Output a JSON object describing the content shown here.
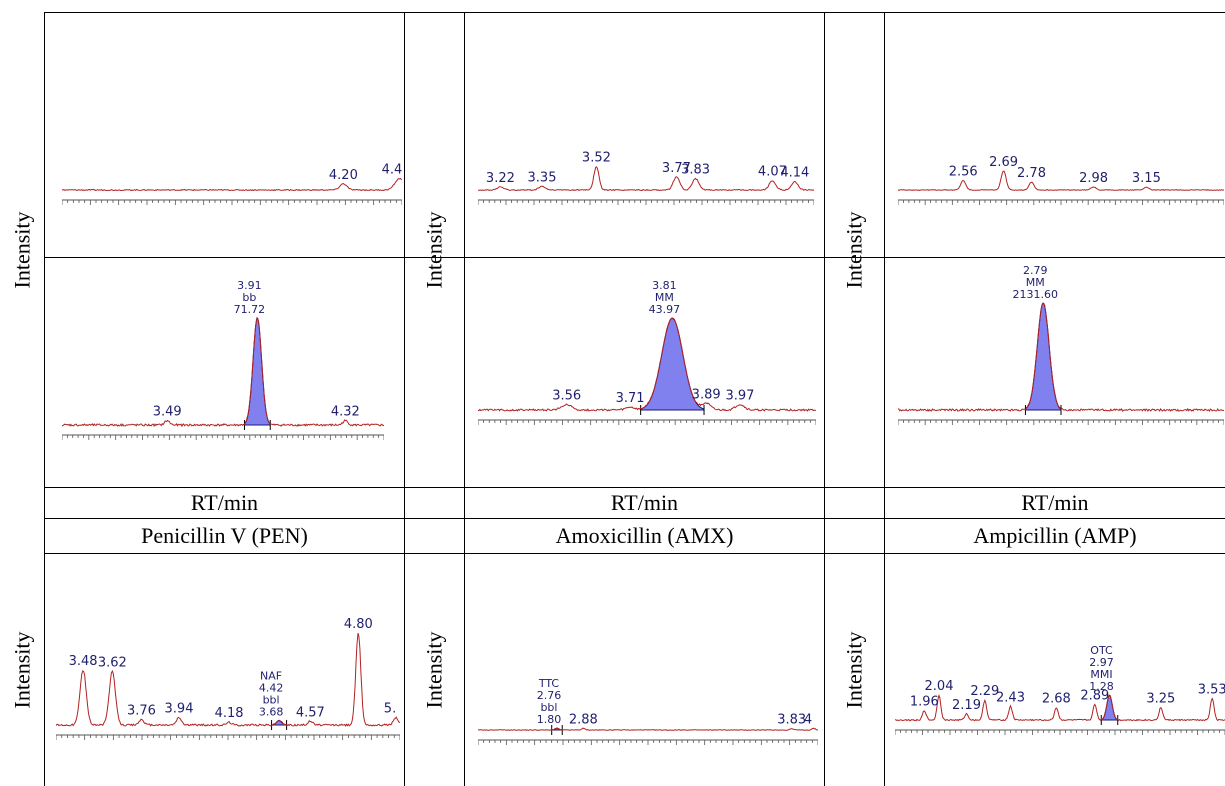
{
  "colors": {
    "trace": "#b22222",
    "peak_fill": "#8080ee",
    "peak_stroke": "#1a1a7a",
    "label": "#1f1f6e",
    "axis": "#555555"
  },
  "labels": {
    "y_axis": "Intensity",
    "x_axis": "RT/min",
    "compounds": [
      "Penicillin  V (PEN)",
      "Amoxicillin  (AMX)",
      "Ampicillin  (AMP)"
    ]
  },
  "chart_data": [
    {
      "type": "line",
      "id": "pen-blank",
      "xlim": [
        3.0,
        4.45
      ],
      "peaks": [
        {
          "rt": 4.2,
          "h": 0.12,
          "w": 0.015,
          "label": "4.20"
        },
        {
          "rt": 4.44,
          "h": 0.22,
          "w": 0.02,
          "label": "4.4"
        }
      ]
    },
    {
      "type": "line",
      "id": "pen-sample",
      "xlim": [
        3.0,
        4.5
      ],
      "peaks": [
        {
          "rt": 3.49,
          "h": 0.04,
          "w": 0.012,
          "label": "3.49"
        },
        {
          "rt": 3.91,
          "h": 1.0,
          "w": 0.02,
          "label": "71.72",
          "shaded": true,
          "name": "PEN",
          "rt_label": "3.91",
          "code": "bb"
        },
        {
          "rt": 4.32,
          "h": 0.04,
          "w": 0.012,
          "label": "4.32"
        }
      ]
    },
    {
      "type": "line",
      "id": "amx-blank",
      "xlim": [
        3.15,
        4.2
      ],
      "peaks": [
        {
          "rt": 3.22,
          "h": 0.06,
          "w": 0.01,
          "label": "3.22"
        },
        {
          "rt": 3.35,
          "h": 0.07,
          "w": 0.01,
          "label": "3.35"
        },
        {
          "rt": 3.52,
          "h": 0.45,
          "w": 0.008,
          "label": "3.52"
        },
        {
          "rt": 3.77,
          "h": 0.25,
          "w": 0.01,
          "label": "3.77"
        },
        {
          "rt": 3.83,
          "h": 0.22,
          "w": 0.01,
          "label": "3.83"
        },
        {
          "rt": 4.07,
          "h": 0.18,
          "w": 0.01,
          "label": "4.07"
        },
        {
          "rt": 4.14,
          "h": 0.16,
          "w": 0.01,
          "label": "4.14"
        }
      ]
    },
    {
      "type": "line",
      "id": "amx-sample",
      "xlim": [
        3.35,
        4.15
      ],
      "peaks": [
        {
          "rt": 3.56,
          "h": 0.06,
          "w": 0.012,
          "label": "3.56"
        },
        {
          "rt": 3.71,
          "h": 0.03,
          "w": 0.01,
          "label": "3.71"
        },
        {
          "rt": 3.81,
          "h": 1.0,
          "w": 0.025,
          "label": "43.97",
          "shaded": true,
          "name": "AMX",
          "rt_label": "3.81",
          "code": "MM"
        },
        {
          "rt": 3.89,
          "h": 0.07,
          "w": 0.01,
          "label": "3.89"
        },
        {
          "rt": 3.97,
          "h": 0.06,
          "w": 0.01,
          "label": "3.97"
        }
      ]
    },
    {
      "type": "line",
      "id": "amp-blank",
      "xlim": [
        2.35,
        3.4
      ],
      "peaks": [
        {
          "rt": 2.56,
          "h": 0.3,
          "w": 0.008,
          "label": "2.56"
        },
        {
          "rt": 2.69,
          "h": 0.6,
          "w": 0.008,
          "label": "2.69"
        },
        {
          "rt": 2.78,
          "h": 0.25,
          "w": 0.008,
          "label": "2.78"
        },
        {
          "rt": 2.98,
          "h": 0.1,
          "w": 0.008,
          "label": "2.98"
        },
        {
          "rt": 3.15,
          "h": 0.09,
          "w": 0.008,
          "label": "3.15"
        }
      ]
    },
    {
      "type": "line",
      "id": "amp-sample",
      "xlim": [
        2.3,
        3.4
      ],
      "peaks": [
        {
          "rt": 2.79,
          "h": 1.0,
          "w": 0.02,
          "label": "2131.60",
          "shaded": true,
          "name": "AMP",
          "rt_label": "2.79",
          "code": "MM"
        }
      ]
    },
    {
      "type": "line",
      "id": "naf-sample",
      "xlim": [
        3.35,
        5.0
      ],
      "peaks": [
        {
          "rt": 3.48,
          "h": 0.6,
          "w": 0.015,
          "label": "3.48"
        },
        {
          "rt": 3.62,
          "h": 0.58,
          "w": 0.015,
          "label": "3.62"
        },
        {
          "rt": 3.76,
          "h": 0.06,
          "w": 0.012,
          "label": "3.76"
        },
        {
          "rt": 3.94,
          "h": 0.08,
          "w": 0.012,
          "label": "3.94"
        },
        {
          "rt": 4.18,
          "h": 0.03,
          "w": 0.012,
          "label": "4.18"
        },
        {
          "rt": 4.42,
          "h": 0.05,
          "w": 0.012,
          "label": "3.68",
          "shaded": true,
          "name": "NAF",
          "rt_label": "4.42",
          "code": "bbl"
        },
        {
          "rt": 4.57,
          "h": 0.04,
          "w": 0.012,
          "label": "4.57"
        },
        {
          "rt": 4.8,
          "h": 1.0,
          "w": 0.012,
          "label": "4.80"
        },
        {
          "rt": 4.98,
          "h": 0.08,
          "w": 0.012,
          "label": "5."
        }
      ]
    },
    {
      "type": "line",
      "id": "ttc-sample",
      "xlim": [
        2.4,
        3.95
      ],
      "peaks": [
        {
          "rt": 2.76,
          "h": 0.06,
          "w": 0.008,
          "label": "1.80",
          "shaded": true,
          "name": "TTC",
          "rt_label": "2.76",
          "code": "bbl"
        },
        {
          "rt": 2.88,
          "h": 0.05,
          "w": 0.008,
          "label": "2.88"
        },
        {
          "rt": 3.83,
          "h": 0.04,
          "w": 0.008,
          "label": "3.83"
        },
        {
          "rt": 3.93,
          "h": 0.05,
          "w": 0.008,
          "label": "4"
        }
      ]
    },
    {
      "type": "line",
      "id": "otc-sample",
      "xlim": [
        1.8,
        3.6
      ],
      "peaks": [
        {
          "rt": 1.96,
          "h": 0.15,
          "w": 0.01,
          "label": "1.96"
        },
        {
          "rt": 2.04,
          "h": 0.4,
          "w": 0.01,
          "label": "2.04"
        },
        {
          "rt": 2.19,
          "h": 0.1,
          "w": 0.01,
          "label": "2.19"
        },
        {
          "rt": 2.29,
          "h": 0.32,
          "w": 0.01,
          "label": "2.29"
        },
        {
          "rt": 2.43,
          "h": 0.22,
          "w": 0.01,
          "label": "2.43"
        },
        {
          "rt": 2.68,
          "h": 0.2,
          "w": 0.01,
          "label": "2.68"
        },
        {
          "rt": 2.89,
          "h": 0.25,
          "w": 0.01,
          "label": "2.89"
        },
        {
          "rt": 2.97,
          "h": 0.4,
          "w": 0.015,
          "label": "1.28",
          "shaded": true,
          "name": "OTC",
          "rt_label": "2.97",
          "code": "MMI"
        },
        {
          "rt": 3.25,
          "h": 0.2,
          "w": 0.01,
          "label": "3.25"
        },
        {
          "rt": 3.53,
          "h": 0.35,
          "w": 0.01,
          "label": "3.53"
        }
      ]
    }
  ]
}
